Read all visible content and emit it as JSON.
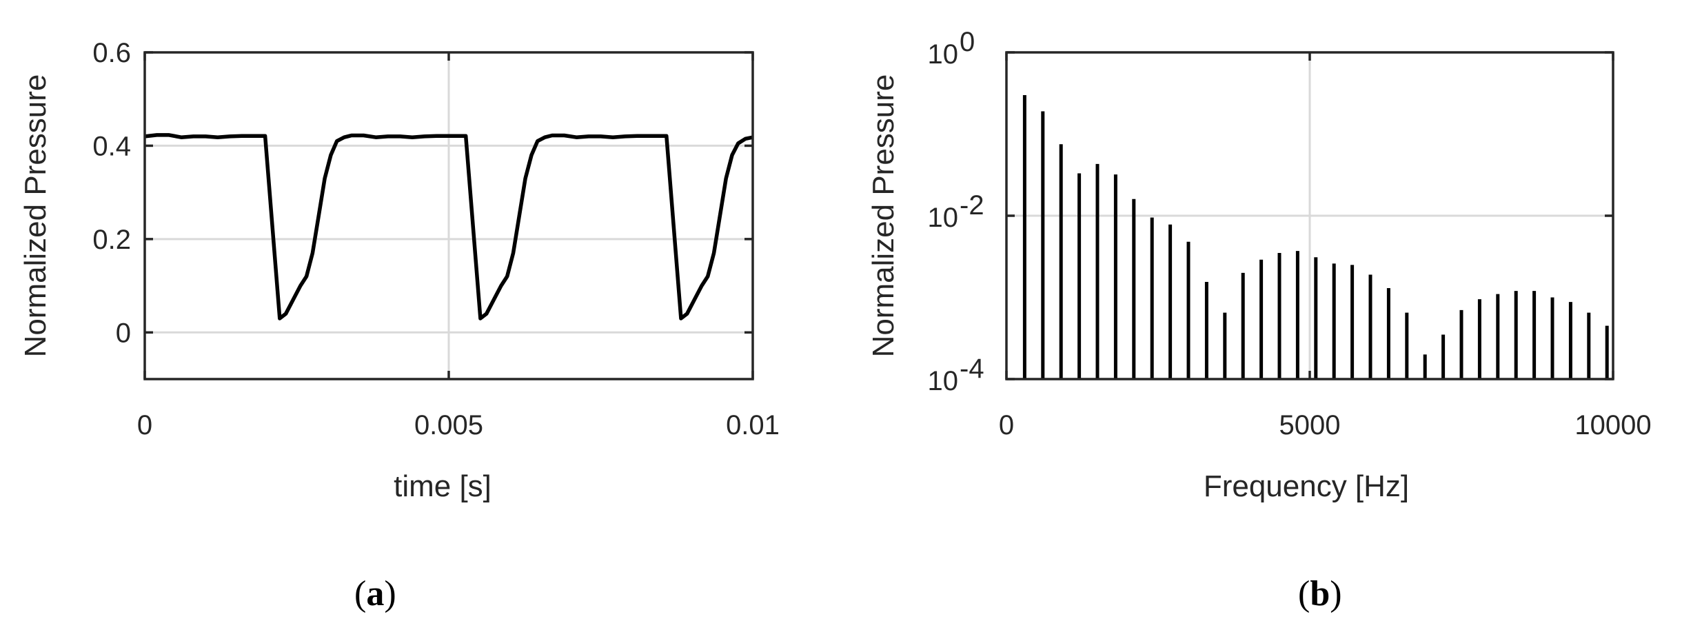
{
  "chart_data": [
    {
      "panel": "(a)",
      "type": "line",
      "xlabel": "time [s]",
      "ylabel": "Normalized Pressure",
      "xlim": [
        0,
        0.01
      ],
      "ylim": [
        -0.1,
        0.6
      ],
      "xticks": [
        0,
        0.005,
        0.01
      ],
      "xtick_labels": [
        "0",
        "0.005",
        "0.01"
      ],
      "yticks": [
        0,
        0.2,
        0.4,
        0.6
      ],
      "ytick_labels": [
        "0",
        "0.2",
        "0.4",
        "0.6"
      ],
      "grid": true,
      "series": [
        {
          "x": [
            0,
            0.0002,
            0.0004,
            0.0006,
            0.0008,
            0.001,
            0.0012,
            0.0014,
            0.0016,
            0.0018,
            0.00198,
            0.00222,
            0.00232,
            0.00244,
            0.00256,
            0.00266,
            0.00276,
            0.00286,
            0.00296,
            0.00306,
            0.00316,
            0.00328,
            0.0034,
            0.0036,
            0.0038,
            0.004,
            0.0042,
            0.0044,
            0.0046,
            0.0048,
            0.005,
            0.0052,
            0.00528,
            0.00552,
            0.00562,
            0.00574,
            0.00586,
            0.00596,
            0.00606,
            0.00616,
            0.00626,
            0.00636,
            0.00646,
            0.00658,
            0.0067,
            0.0069,
            0.0071,
            0.0073,
            0.0075,
            0.0077,
            0.0079,
            0.0081,
            0.0083,
            0.0085,
            0.00858,
            0.00882,
            0.00892,
            0.00904,
            0.00916,
            0.00926,
            0.00936,
            0.00946,
            0.00956,
            0.00966,
            0.00976,
            0.00988,
            0.01
          ],
          "y": [
            0.42,
            0.423,
            0.423,
            0.418,
            0.42,
            0.42,
            0.418,
            0.42,
            0.421,
            0.421,
            0.421,
            0.03,
            0.04,
            0.07,
            0.1,
            0.12,
            0.17,
            0.25,
            0.33,
            0.38,
            0.41,
            0.418,
            0.422,
            0.422,
            0.418,
            0.42,
            0.42,
            0.418,
            0.42,
            0.421,
            0.421,
            0.421,
            0.421,
            0.03,
            0.04,
            0.07,
            0.1,
            0.12,
            0.17,
            0.25,
            0.33,
            0.38,
            0.41,
            0.418,
            0.422,
            0.422,
            0.418,
            0.42,
            0.42,
            0.418,
            0.42,
            0.421,
            0.421,
            0.421,
            0.421,
            0.03,
            0.04,
            0.07,
            0.1,
            0.12,
            0.17,
            0.25,
            0.33,
            0.38,
            0.405,
            0.415,
            0.418
          ]
        }
      ]
    },
    {
      "panel": "(b)",
      "type": "bar",
      "xlabel": "Frequency [Hz]",
      "ylabel": "Normalized Pressure",
      "xlim": [
        0,
        10000
      ],
      "ylim": [
        0.0001,
        1
      ],
      "yscale": "log",
      "xticks": [
        0,
        5000,
        10000
      ],
      "xtick_labels": [
        "0",
        "5000",
        "10000"
      ],
      "yticks": [
        0.0001,
        0.01,
        1
      ],
      "ytick_labels": [
        {
          "base": "10",
          "exp": "-4"
        },
        {
          "base": "10",
          "exp": "-2"
        },
        {
          "base": "10",
          "exp": "0"
        }
      ],
      "grid": true,
      "series": [
        {
          "x": [
            300,
            600,
            900,
            1200,
            1500,
            1800,
            2100,
            2400,
            2700,
            3000,
            3300,
            3600,
            3900,
            4200,
            4500,
            4800,
            5100,
            5400,
            5700,
            6000,
            6300,
            6600,
            6900,
            7200,
            7500,
            7800,
            8100,
            8400,
            8700,
            9000,
            9300,
            9600,
            9900
          ],
          "values": [
            0.3,
            0.19,
            0.075,
            0.033,
            0.043,
            0.032,
            0.016,
            0.0095,
            0.0078,
            0.0048,
            0.00155,
            0.00065,
            0.002,
            0.0029,
            0.0035,
            0.0037,
            0.0031,
            0.0026,
            0.0025,
            0.0019,
            0.0013,
            0.00065,
            0.0002,
            0.00035,
            0.0007,
            0.00095,
            0.0011,
            0.0012,
            0.0012,
            0.001,
            0.00088,
            0.00065,
            0.00045
          ]
        }
      ]
    }
  ],
  "captions": {
    "a": {
      "open": "(",
      "letter": "a",
      "close": ")"
    },
    "b": {
      "open": "(",
      "letter": "b",
      "close": ")"
    }
  }
}
